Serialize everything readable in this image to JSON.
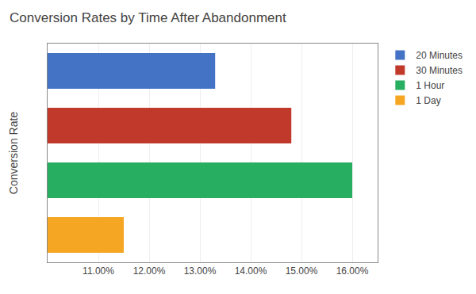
{
  "chart_data": {
    "type": "bar",
    "orientation": "horizontal",
    "title": "Conversion Rates by Time After Abandonment",
    "ylabel": "Conversion Rate",
    "categories": [
      "20 Minutes",
      "30 Minutes",
      "1 Hour",
      "1 Day"
    ],
    "values": [
      0.133,
      0.148,
      0.16,
      0.115
    ],
    "colors": [
      "#4472C4",
      "#C0392B",
      "#27AE60",
      "#F5A623"
    ],
    "xlim": [
      0.1,
      0.165
    ],
    "xticks": [
      {
        "value": 0.11,
        "label": "11.00%"
      },
      {
        "value": 0.12,
        "label": "12.00%"
      },
      {
        "value": 0.13,
        "label": "13.00%"
      },
      {
        "value": 0.14,
        "label": "14.00%"
      },
      {
        "value": 0.15,
        "label": "15.00%"
      },
      {
        "value": 0.16,
        "label": "16.00%"
      }
    ],
    "grid": true,
    "legend": "right",
    "tick_labels": "x"
  }
}
